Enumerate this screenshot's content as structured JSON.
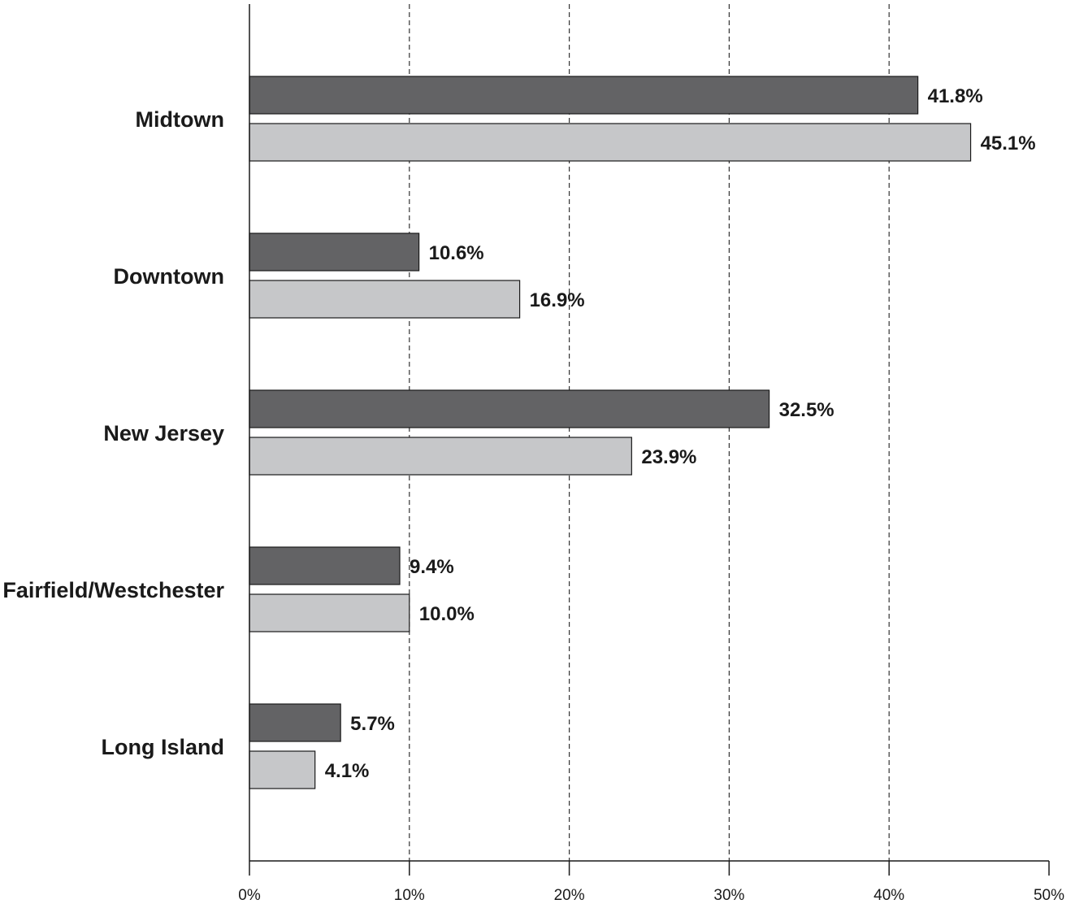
{
  "chart_data": {
    "type": "bar",
    "orientation": "horizontal",
    "categories": [
      "Midtown",
      "Downtown",
      "New Jersey",
      "Fairfield/Westchester",
      "Long Island"
    ],
    "series": [
      {
        "color": "#636365",
        "values": [
          41.8,
          10.6,
          32.5,
          9.4,
          5.7
        ],
        "labels": [
          "41.8%",
          "10.6%",
          "32.5%",
          "9.4%",
          "5.7%"
        ]
      },
      {
        "color": "#c6c7c9",
        "values": [
          45.1,
          16.9,
          23.9,
          10.0,
          4.1
        ],
        "labels": [
          "45.1%",
          "16.9%",
          "23.9%",
          "10.0%",
          "4.1%"
        ]
      }
    ],
    "xlim": [
      0,
      50
    ],
    "xticks": [
      0,
      10,
      20,
      30,
      40,
      50
    ],
    "xtick_labels": [
      "0%",
      "10%",
      "20%",
      "30%",
      "40%",
      "50%"
    ],
    "grid": "vertical dashed",
    "title": "",
    "xlabel": "",
    "ylabel": ""
  }
}
